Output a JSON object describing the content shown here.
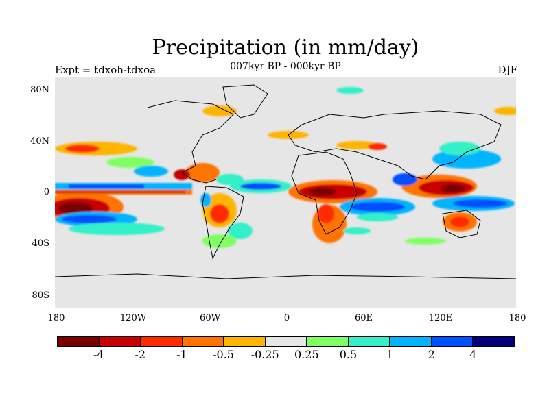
{
  "title": "Precipitation (in mm/day)",
  "subtitle": "007kyr BP - 000kyr BP",
  "left_string": "Expt = tdxoh-tdxoa",
  "right_string": "DJF",
  "lat_labels": [
    "80N",
    "40N",
    "0",
    "40S",
    "80S"
  ],
  "lon_labels": [
    "180",
    "120W",
    "60W",
    "0",
    "60E",
    "120E",
    "180"
  ],
  "colorbar": {
    "colors": [
      "#7a0000",
      "#c80000",
      "#ff2a00",
      "#ff7300",
      "#ffb400",
      "#e6e6e6",
      "#80ff64",
      "#32f0c8",
      "#00b4ff",
      "#0050ff",
      "#00007a"
    ],
    "labels": [
      "-4",
      "-2",
      "-1",
      "-0.5",
      "-0.25",
      "0.25",
      "0.5",
      "1",
      "2",
      "4"
    ]
  },
  "map": {
    "projection": "cylindrical-equidistant",
    "lon_range": [
      -180,
      180
    ],
    "lat_range": [
      -90,
      90
    ],
    "background": "#e6e6e6"
  }
}
